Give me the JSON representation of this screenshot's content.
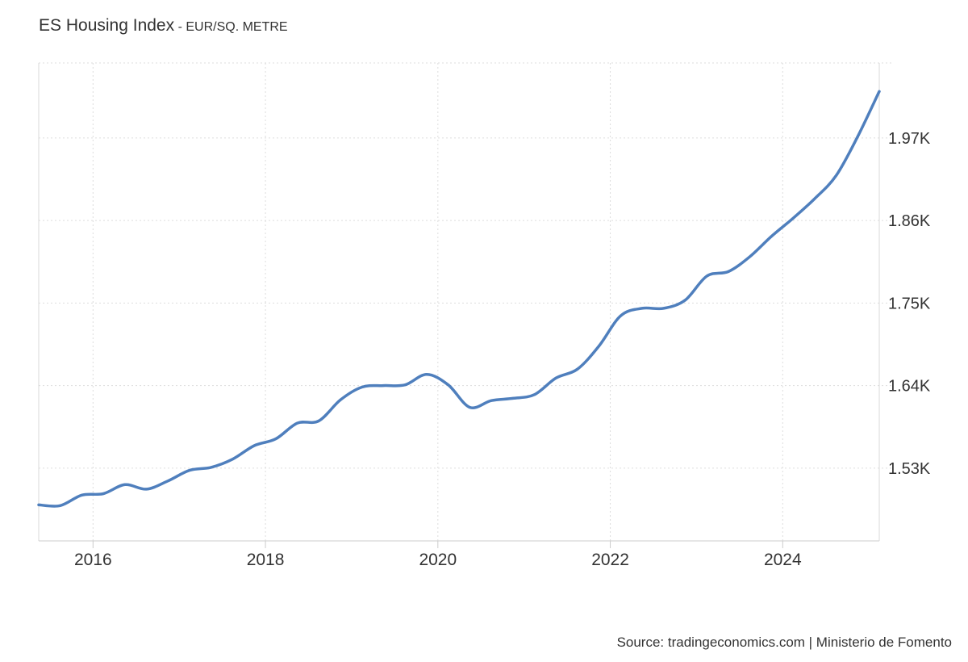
{
  "chart_data": {
    "type": "line",
    "title": "ES Housing Index",
    "subtitle": "EUR/SQ. METRE",
    "xlabel": "",
    "ylabel": "",
    "x_ticks": [
      "2016",
      "2018",
      "2020",
      "2022",
      "2024"
    ],
    "y_ticks": [
      {
        "value": 1530,
        "label": "1.53K"
      },
      {
        "value": 1640,
        "label": "1.64K"
      },
      {
        "value": 1750,
        "label": "1.75K"
      },
      {
        "value": 1860,
        "label": "1.86K"
      },
      {
        "value": 1970,
        "label": "1.97K"
      }
    ],
    "xlim": [
      2015.37,
      2025.12
    ],
    "ylim": [
      1433,
      2070
    ],
    "grid": true,
    "axis_side_y": "right",
    "series": [
      {
        "color": "#4f7fbd",
        "points": [
          [
            2015.37,
            1481
          ],
          [
            2015.62,
            1480
          ],
          [
            2015.87,
            1494
          ],
          [
            2016.12,
            1496
          ],
          [
            2016.37,
            1508
          ],
          [
            2016.62,
            1502
          ],
          [
            2016.87,
            1513
          ],
          [
            2017.12,
            1527
          ],
          [
            2017.37,
            1531
          ],
          [
            2017.62,
            1542
          ],
          [
            2017.87,
            1560
          ],
          [
            2018.12,
            1569
          ],
          [
            2018.37,
            1590
          ],
          [
            2018.62,
            1593
          ],
          [
            2018.87,
            1621
          ],
          [
            2019.12,
            1638
          ],
          [
            2019.37,
            1640
          ],
          [
            2019.62,
            1641
          ],
          [
            2019.87,
            1655
          ],
          [
            2020.12,
            1641
          ],
          [
            2020.37,
            1611
          ],
          [
            2020.62,
            1620
          ],
          [
            2020.87,
            1623
          ],
          [
            2021.12,
            1628
          ],
          [
            2021.37,
            1650
          ],
          [
            2021.62,
            1662
          ],
          [
            2021.87,
            1693
          ],
          [
            2022.12,
            1733
          ],
          [
            2022.37,
            1743
          ],
          [
            2022.62,
            1743
          ],
          [
            2022.87,
            1754
          ],
          [
            2023.12,
            1786
          ],
          [
            2023.37,
            1792
          ],
          [
            2023.62,
            1812
          ],
          [
            2023.87,
            1839
          ],
          [
            2024.12,
            1863
          ],
          [
            2024.37,
            1889
          ],
          [
            2024.62,
            1920
          ],
          [
            2024.87,
            1972
          ],
          [
            2025.12,
            2032
          ]
        ]
      }
    ]
  },
  "footer": {
    "source": "Source: tradingeconomics.com | Ministerio de Fomento"
  }
}
